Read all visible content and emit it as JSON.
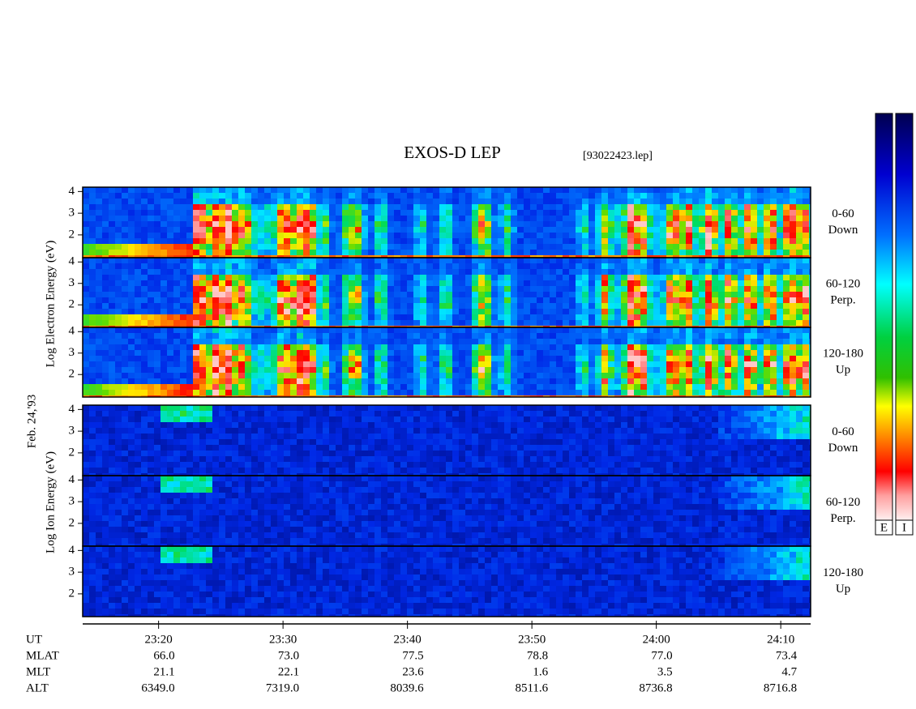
{
  "title": "EXOS-D LEP",
  "file_label": "[93022423.lep]",
  "date_label": "Feb. 24,'93",
  "electron_axis_label": "Log  Electron  Energy (eV)",
  "ion_axis_label": "Log  Ion  Energy (eV)",
  "panels": [
    {
      "angle": "0-60",
      "direction": "Down"
    },
    {
      "angle": "60-120",
      "direction": "Perp."
    },
    {
      "angle": "120-180",
      "direction": "Up"
    },
    {
      "angle": "0-60",
      "direction": "Down"
    },
    {
      "angle": "60-120",
      "direction": "Perp."
    },
    {
      "angle": "120-180",
      "direction": "Up"
    }
  ],
  "energy_axis": {
    "ylim": [
      0.95,
      4.2
    ],
    "yticks": [
      2,
      3,
      4
    ]
  },
  "time_axis": {
    "xlim": [
      1393.9,
      1452.4
    ],
    "xticks": [
      {
        "value": 1400,
        "label": "23:20"
      },
      {
        "value": 1410,
        "label": "23:30"
      },
      {
        "value": 1420,
        "label": "23:40"
      },
      {
        "value": 1430,
        "label": "23:50"
      },
      {
        "value": 1440,
        "label": "24:00"
      },
      {
        "value": 1450,
        "label": "24:10"
      }
    ]
  },
  "ephemeris": {
    "ut_label": "UT",
    "rows": [
      {
        "label": "MLAT",
        "values": [
          "66.0",
          "73.0",
          "77.5",
          "78.8",
          "77.0",
          "73.4"
        ]
      },
      {
        "label": "MLT",
        "values": [
          "21.1",
          "22.1",
          "23.6",
          "1.6",
          "3.5",
          "4.7"
        ]
      },
      {
        "label": "ALT",
        "values": [
          "6349.0",
          "7319.0",
          "8039.6",
          "8511.6",
          "8736.8",
          "8716.8"
        ]
      }
    ]
  },
  "colorbars": [
    {
      "label": "E"
    },
    {
      "label": "I"
    }
  ]
}
